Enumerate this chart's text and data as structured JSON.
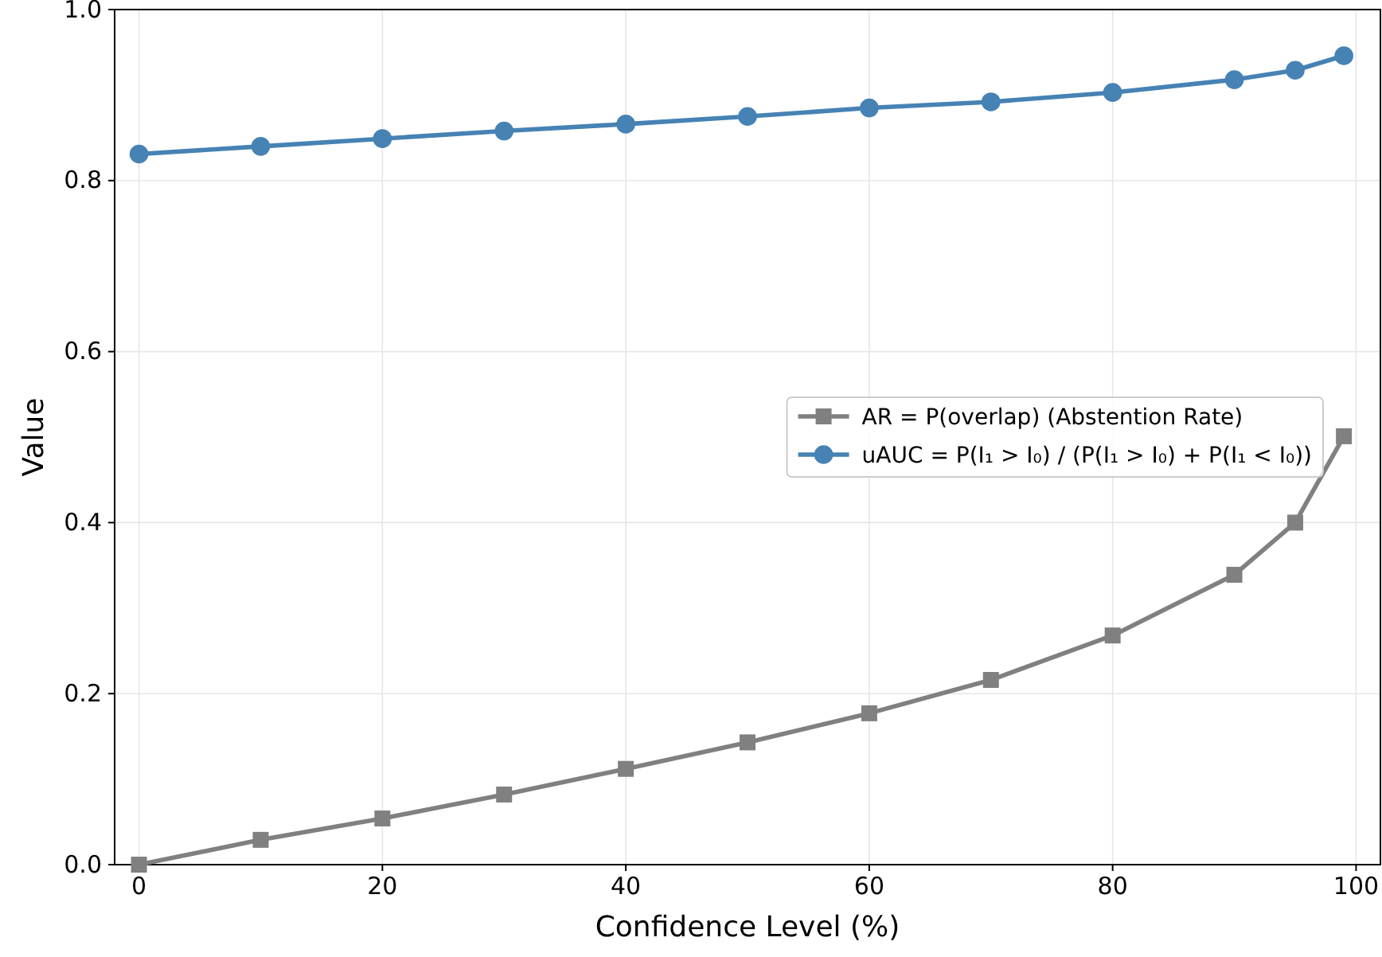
{
  "chart_data": {
    "type": "line",
    "xlabel": "Confidence Level (%)",
    "ylabel": "Value",
    "x": [
      0,
      10,
      20,
      30,
      40,
      50,
      60,
      70,
      80,
      90,
      95,
      99
    ],
    "xlim": [
      -2,
      102
    ],
    "xticks": [
      0,
      20,
      40,
      60,
      80,
      100
    ],
    "ylim": [
      0,
      1
    ],
    "yticks": [
      {
        "value": 0,
        "label": "0.0"
      },
      {
        "value": 0.2,
        "label": "0.2"
      },
      {
        "value": 0.4,
        "label": "0.4"
      },
      {
        "value": 0.6,
        "label": "0.6"
      },
      {
        "value": 0.8,
        "label": "0.8"
      },
      {
        "value": 1,
        "label": "1.0"
      }
    ],
    "grid": true,
    "legend": "right",
    "line_style": "solid",
    "series": [
      {
        "name": "AR = P(overlap) (Abstention Rate)",
        "color": "#808080",
        "marker": "square",
        "values": [
          0,
          0.029,
          0.054,
          0.082,
          0.112,
          0.143,
          0.177,
          0.216,
          0.268,
          0.339,
          0.4,
          0.501
        ]
      },
      {
        "name": "uAUC = P(I₁ > I₀) / (P(I₁ > I₀) + P(I₁ < I₀))",
        "color": "#4682b4",
        "marker": "circle",
        "values": [
          0.831,
          0.84,
          0.849,
          0.858,
          0.866,
          0.875,
          0.885,
          0.892,
          0.903,
          0.918,
          0.929,
          0.946
        ]
      }
    ]
  }
}
